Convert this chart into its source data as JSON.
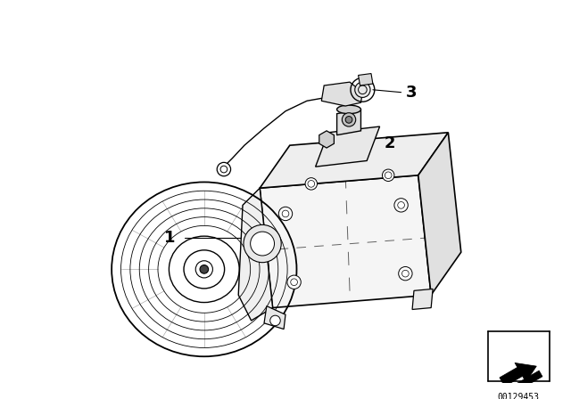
{
  "bg_color": "#ffffff",
  "line_color": "#000000",
  "fig_width": 6.4,
  "fig_height": 4.48,
  "dpi": 100,
  "catalog_number": "00129453",
  "border_color": "#000000"
}
